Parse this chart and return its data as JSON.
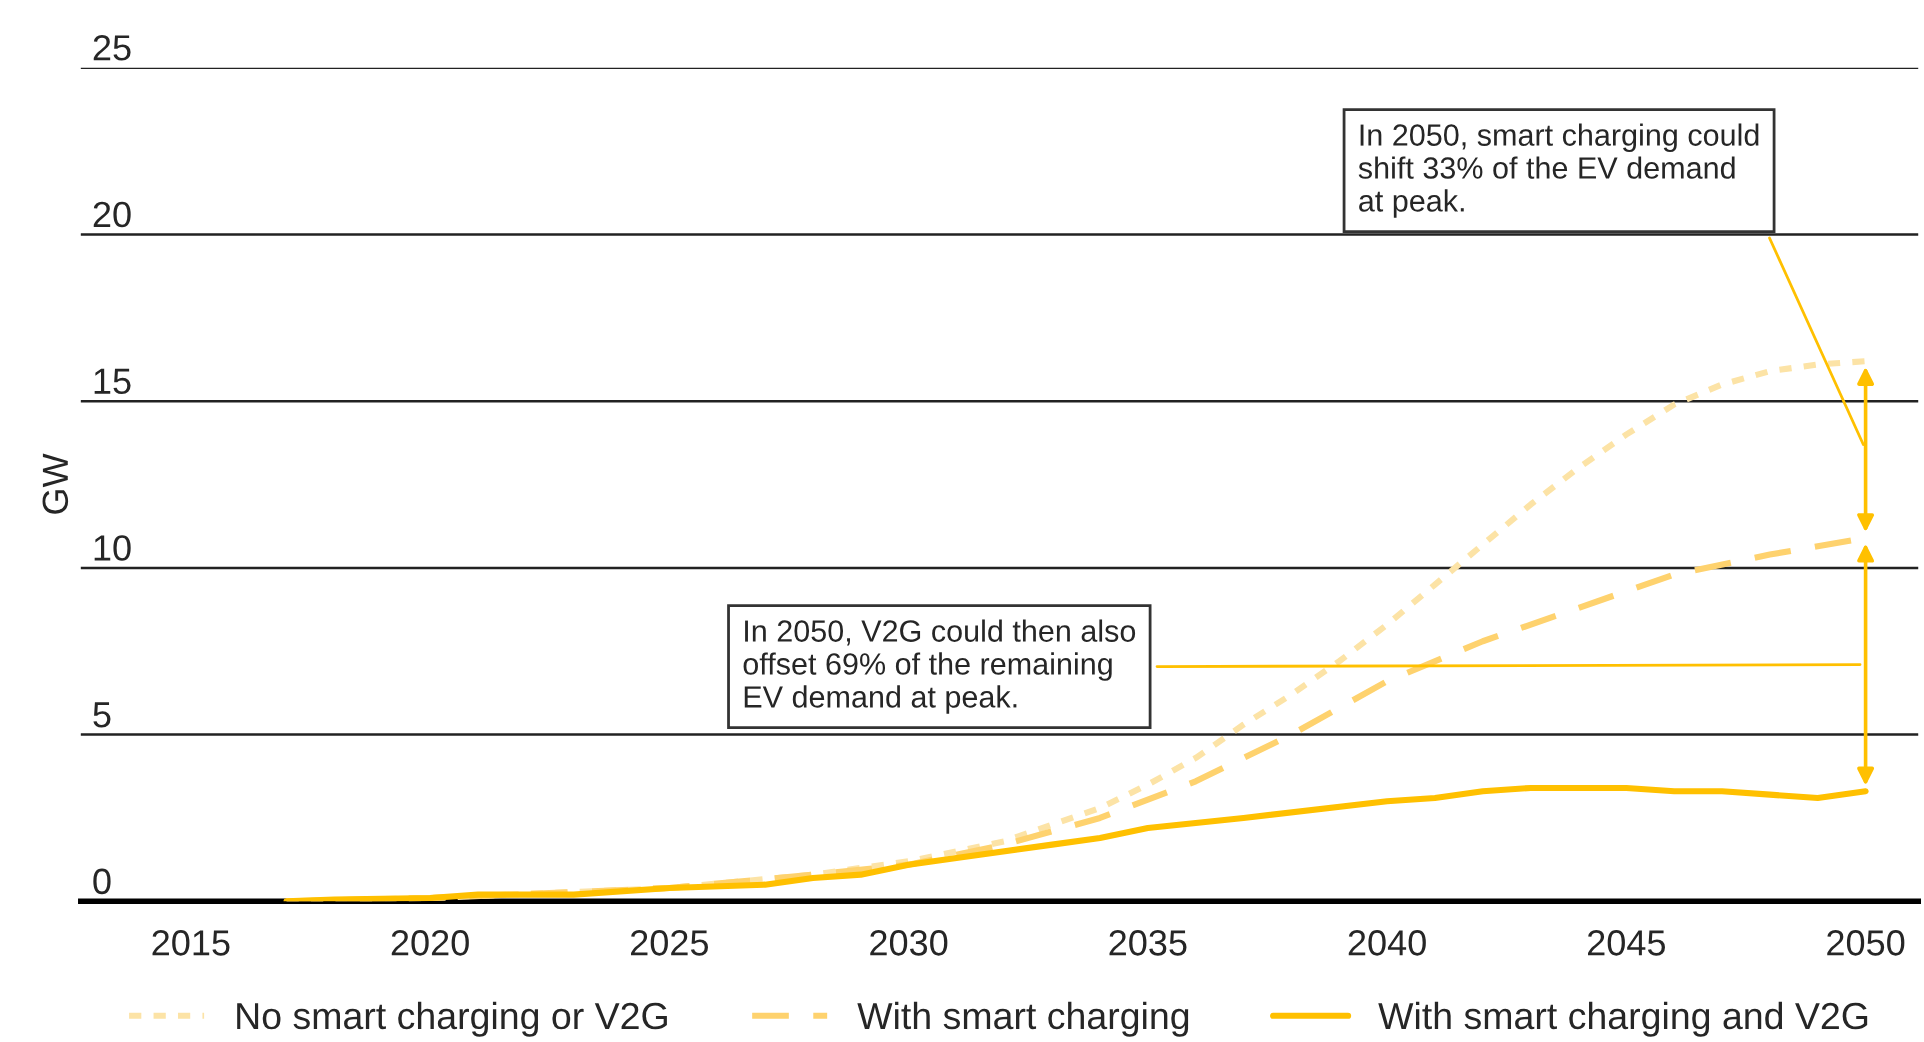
{
  "chart_data": {
    "type": "line",
    "ylabel": "GW",
    "xlim": [
      2012.7,
      2051.1
    ],
    "xticks": [
      2015,
      2020,
      2025,
      2030,
      2035,
      2040,
      2045,
      2050
    ],
    "ylim": [
      0,
      25
    ],
    "yticks": [
      0,
      5,
      10,
      15,
      20,
      25
    ],
    "grid": "y",
    "legend": "bottom",
    "series": [
      {
        "name": "No smart charging or V2G",
        "color": "#fce3a6",
        "line_style": "dotted",
        "x": [
          2017,
          2020,
          2025,
          2028,
          2030,
          2032,
          2034,
          2035,
          2036,
          2037,
          2038,
          2039,
          2040,
          2041,
          2042,
          2043,
          2044,
          2045,
          2046,
          2047,
          2048,
          2049,
          2050
        ],
        "values": [
          0,
          0.1,
          0.4,
          0.8,
          1.2,
          1.8,
          2.8,
          3.5,
          4.3,
          5.3,
          6.2,
          7.2,
          8.3,
          9.5,
          10.7,
          11.9,
          13.0,
          14.0,
          14.9,
          15.5,
          15.9,
          16.1,
          16.2
        ]
      },
      {
        "name": "With smart charging",
        "color": "#fed26e",
        "line_style": "dashed",
        "x": [
          2017,
          2020,
          2025,
          2028,
          2030,
          2032,
          2034,
          2036,
          2038,
          2040,
          2042,
          2044,
          2046,
          2048,
          2050
        ],
        "values": [
          0,
          0.1,
          0.4,
          0.8,
          1.1,
          1.7,
          2.5,
          3.6,
          5.0,
          6.6,
          7.8,
          8.8,
          9.8,
          10.4,
          10.9
        ]
      },
      {
        "name": "With smart charging and V2G",
        "color": "#ffc000",
        "line_style": "solid",
        "x": [
          2017,
          2018,
          2020,
          2021,
          2023,
          2025,
          2027,
          2028,
          2029,
          2030,
          2031,
          2033,
          2034,
          2035,
          2037,
          2040,
          2041,
          2042,
          2043,
          2045,
          2046,
          2047,
          2048,
          2049,
          2050
        ],
        "values": [
          0,
          0.05,
          0.1,
          0.2,
          0.2,
          0.4,
          0.5,
          0.7,
          0.8,
          1.1,
          1.3,
          1.7,
          1.9,
          2.2,
          2.5,
          3.0,
          3.1,
          3.3,
          3.4,
          3.4,
          3.3,
          3.3,
          3.2,
          3.1,
          3.3
        ]
      }
    ],
    "annotations": [
      "In 2050, smart charging could\nshift 33% of the EV demand\nat peak.",
      "In 2050, V2G could then also\noffset 69% of the remaining\nEV demand at peak."
    ]
  }
}
